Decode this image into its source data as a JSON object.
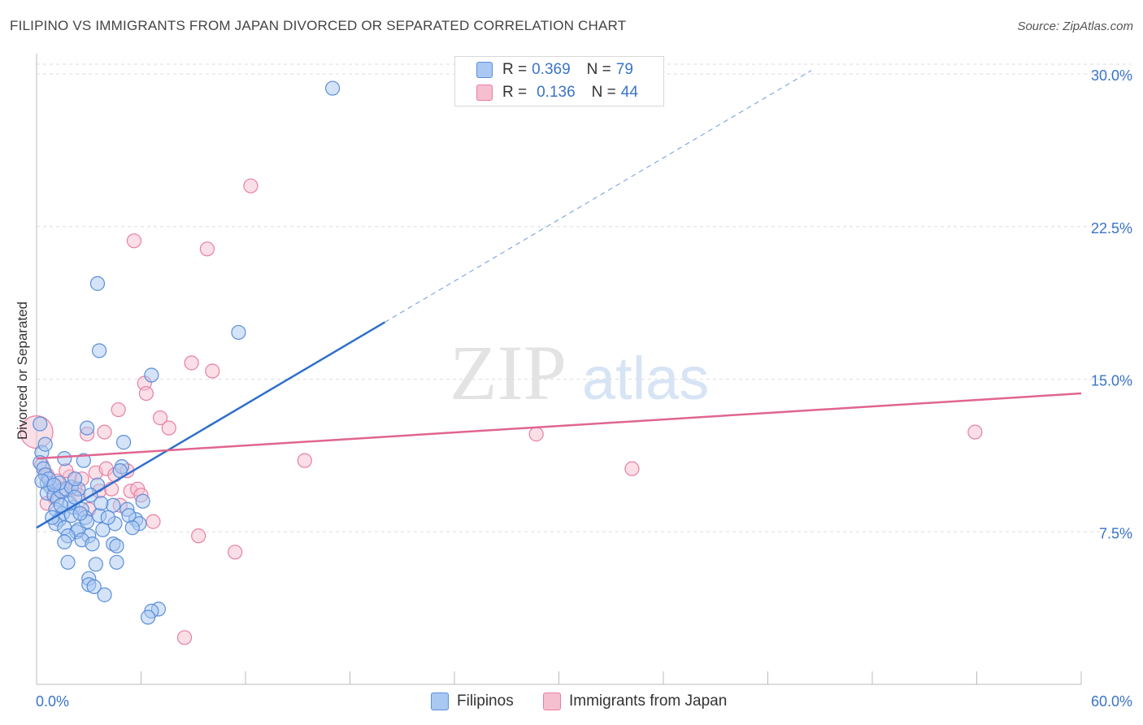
{
  "title": "FILIPINO VS IMMIGRANTS FROM JAPAN DIVORCED OR SEPARATED CORRELATION CHART",
  "source": "Source: ZipAtlas.com",
  "watermark": {
    "zip": "ZIP",
    "atlas": "atlas"
  },
  "legend": {
    "rows": [
      {
        "r_label": "R =",
        "r_value": "0.369",
        "n_label": "N =",
        "n_value": "79"
      },
      {
        "r_label": "R =",
        "r_value": "0.136",
        "n_label": "N =",
        "n_value": "44"
      }
    ]
  },
  "bottom_legend": [
    "Filipinos",
    "Immigrants from Japan"
  ],
  "colors": {
    "blue_fill": "#a9c8f2",
    "blue_stroke": "#5b8fd8",
    "blue_line": "#2f6fcc",
    "pink_fill": "#f6bfd0",
    "pink_stroke": "#e77fa1",
    "pink_line": "#e0658f",
    "tick_label": "#3a74c8",
    "grid": "#dddddd"
  },
  "chart_data": {
    "type": "scatter",
    "title": "FILIPINO VS IMMIGRANTS FROM JAPAN DIVORCED OR SEPARATED CORRELATION CHART",
    "xlabel": "",
    "ylabel": "Divorced or Separated",
    "xlim": [
      0,
      60
    ],
    "ylim": [
      0,
      31
    ],
    "x_tick_labels": [
      "0.0%",
      "60.0%"
    ],
    "y_ticks": [
      7.5,
      15.0,
      22.5,
      30.0
    ],
    "y_tick_labels": [
      "7.5%",
      "15.0%",
      "22.5%",
      "30.0%"
    ],
    "grid": true,
    "legend_placement": "top-center",
    "series": [
      {
        "name": "Filipinos",
        "r": 0.369,
        "n": 79,
        "trend": {
          "x0": 0,
          "y0": 7.7,
          "x1": 20,
          "y1": 17.8,
          "dashed_to_x": 44.5
        },
        "points": [
          [
            17,
            29.3
          ],
          [
            3.5,
            19.7
          ],
          [
            3.6,
            16.4
          ],
          [
            11.6,
            17.3
          ],
          [
            6.6,
            15.2
          ],
          [
            2.9,
            12.6
          ],
          [
            5,
            11.9
          ],
          [
            1.6,
            11.1
          ],
          [
            2.7,
            11.0
          ],
          [
            4.9,
            10.7
          ],
          [
            0.2,
            12.8
          ],
          [
            0.3,
            11.4
          ],
          [
            0.2,
            10.9
          ],
          [
            0.4,
            10.6
          ],
          [
            0.5,
            10.3
          ],
          [
            0.6,
            9.9
          ],
          [
            0.8,
            9.7
          ],
          [
            0.6,
            9.4
          ],
          [
            1,
            9.3
          ],
          [
            1.2,
            9.1
          ],
          [
            1.4,
            9.5
          ],
          [
            1.7,
            9.6
          ],
          [
            2,
            9.7
          ],
          [
            2.4,
            9.6
          ],
          [
            1.1,
            8.6
          ],
          [
            1.5,
            8.4
          ],
          [
            2.1,
            8.7
          ],
          [
            2.6,
            8.6
          ],
          [
            1.3,
            8.1
          ],
          [
            2,
            8.3
          ],
          [
            2.8,
            8.2
          ],
          [
            3.6,
            8.3
          ],
          [
            4.4,
            8.8
          ],
          [
            5.2,
            8.6
          ],
          [
            5.7,
            8.1
          ],
          [
            6.1,
            9.0
          ],
          [
            1.1,
            7.9
          ],
          [
            1.6,
            7.7
          ],
          [
            2.3,
            7.5
          ],
          [
            3,
            7.3
          ],
          [
            3.8,
            7.6
          ],
          [
            4.5,
            7.9
          ],
          [
            5.3,
            8.3
          ],
          [
            5.9,
            7.9
          ],
          [
            2.4,
            7.6
          ],
          [
            1.8,
            7.3
          ],
          [
            2.6,
            7.1
          ],
          [
            3.2,
            6.9
          ],
          [
            4.4,
            6.9
          ],
          [
            4.6,
            6.8
          ],
          [
            1.8,
            6.0
          ],
          [
            3.4,
            5.9
          ],
          [
            4.6,
            6.0
          ],
          [
            3,
            5.2
          ],
          [
            3,
            4.9
          ],
          [
            3.3,
            4.8
          ],
          [
            3.9,
            4.4
          ],
          [
            7,
            3.7
          ],
          [
            6.6,
            3.6
          ],
          [
            6.4,
            3.3
          ],
          [
            1.6,
            7.0
          ],
          [
            0.9,
            8.2
          ],
          [
            1.3,
            9.9
          ],
          [
            2.2,
            10.1
          ],
          [
            3.5,
            9.8
          ],
          [
            4.8,
            10.5
          ],
          [
            0.7,
            10.1
          ],
          [
            1.9,
            8.9
          ],
          [
            2.9,
            8.0
          ],
          [
            3.7,
            8.9
          ],
          [
            4.1,
            8.2
          ],
          [
            5.5,
            7.7
          ],
          [
            0.3,
            10.0
          ],
          [
            2.2,
            9.2
          ],
          [
            1.4,
            8.8
          ],
          [
            3.1,
            9.3
          ],
          [
            0.5,
            11.8
          ],
          [
            1.0,
            9.8
          ],
          [
            2.5,
            8.4
          ]
        ]
      },
      {
        "name": "Immigrants from Japan",
        "r": 0.136,
        "n": 44,
        "trend": {
          "x0": 0,
          "y0": 11.1,
          "x1": 60,
          "y1": 14.3
        },
        "points": [
          [
            12.3,
            24.5
          ],
          [
            5.6,
            21.8
          ],
          [
            9.8,
            21.4
          ],
          [
            8.9,
            15.8
          ],
          [
            10.1,
            15.4
          ],
          [
            6.2,
            14.8
          ],
          [
            6.3,
            14.3
          ],
          [
            4.7,
            13.5
          ],
          [
            7.1,
            13.1
          ],
          [
            7.6,
            12.6
          ],
          [
            3.9,
            12.4
          ],
          [
            2.9,
            12.3
          ],
          [
            0,
            12.4
          ],
          [
            28.7,
            12.3
          ],
          [
            53.9,
            12.4
          ],
          [
            15.4,
            11.0
          ],
          [
            34.2,
            10.6
          ],
          [
            0.3,
            10.8
          ],
          [
            0.6,
            10.3
          ],
          [
            1.2,
            10.0
          ],
          [
            1.9,
            10.2
          ],
          [
            2.6,
            10.1
          ],
          [
            3.4,
            10.4
          ],
          [
            4,
            10.6
          ],
          [
            5.2,
            10.5
          ],
          [
            0.9,
            9.8
          ],
          [
            1.5,
            9.6
          ],
          [
            2.2,
            9.6
          ],
          [
            3.6,
            9.5
          ],
          [
            4.3,
            9.6
          ],
          [
            5.4,
            9.5
          ],
          [
            5.8,
            9.6
          ],
          [
            6,
            9.3
          ],
          [
            1,
            9.2
          ],
          [
            2.4,
            9.3
          ],
          [
            0.6,
            8.9
          ],
          [
            3,
            8.6
          ],
          [
            4.8,
            8.8
          ],
          [
            6.7,
            8.0
          ],
          [
            9.3,
            7.3
          ],
          [
            11.4,
            6.5
          ],
          [
            8.5,
            2.3
          ],
          [
            1.7,
            10.5
          ],
          [
            4.5,
            10.3
          ]
        ]
      }
    ]
  }
}
